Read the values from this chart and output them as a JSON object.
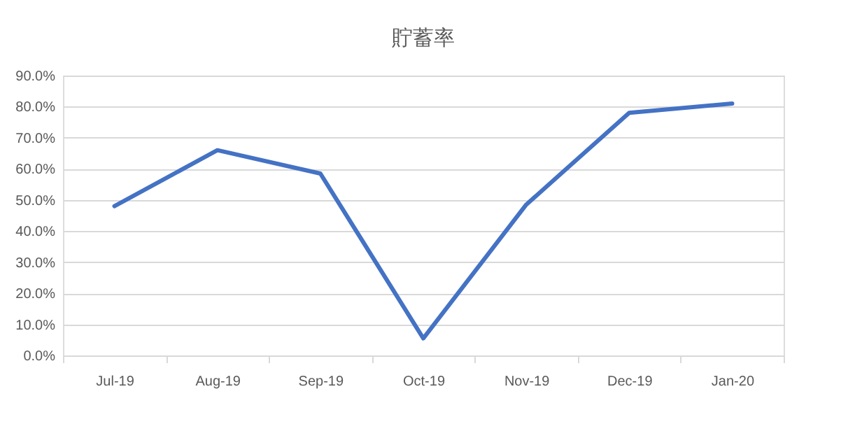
{
  "chart_data": {
    "type": "line",
    "title": "貯蓄率",
    "categories": [
      "Jul-19",
      "Aug-19",
      "Sep-19",
      "Oct-19",
      "Nov-19",
      "Dec-19",
      "Jan-20"
    ],
    "series": [
      {
        "color": "#4472c4",
        "values": [
          48,
          66,
          58.5,
          5.5,
          48.5,
          78,
          81
        ]
      }
    ],
    "ylim": [
      0,
      90
    ],
    "yticks": [
      {
        "value": 0,
        "label": "0.0%"
      },
      {
        "value": 10,
        "label": "10.0%"
      },
      {
        "value": 20,
        "label": "20.0%"
      },
      {
        "value": 30,
        "label": "30.0%"
      },
      {
        "value": 40,
        "label": "40.0%"
      },
      {
        "value": 50,
        "label": "50.0%"
      },
      {
        "value": 60,
        "label": "60.0%"
      },
      {
        "value": 70,
        "label": "70.0%"
      },
      {
        "value": 80,
        "label": "80.0%"
      },
      {
        "value": 90,
        "label": "90.0%"
      }
    ],
    "grid": "y",
    "legend": false,
    "marker": "none",
    "line_style": "solid"
  }
}
